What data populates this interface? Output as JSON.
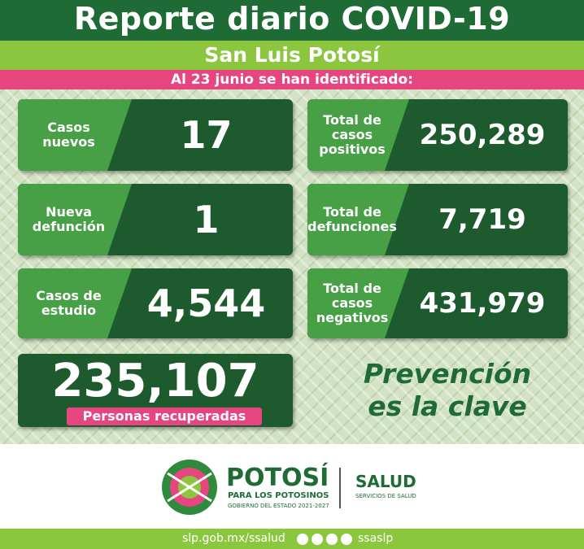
{
  "header": {
    "title": "Reporte diario COVID-19",
    "subtitle": "San Luis Potosí",
    "date_line": "Al 23 junio se han identificado:"
  },
  "cards": [
    {
      "label": [
        "Casos",
        "nuevos"
      ],
      "value": "17"
    },
    {
      "label": [
        "Total de",
        "casos",
        "positivos"
      ],
      "value": "250,289"
    },
    {
      "label": [
        "Nueva",
        "defunción"
      ],
      "value": "1"
    },
    {
      "label": [
        "Total de",
        "defunciones"
      ],
      "value": "7,719"
    },
    {
      "label": [
        "Casos de",
        "estudio"
      ],
      "value": "4,544"
    },
    {
      "label": [
        "Total de",
        "casos",
        "negativos"
      ],
      "value": "431,979"
    }
  ],
  "recovered": {
    "value": "235,107",
    "label": "Personas recuperadas"
  },
  "slogan": [
    "Prevención",
    "es la clave"
  ],
  "logo": {
    "name": "POTOSÍ",
    "tagline": "PARA LOS POTOSINOS",
    "government": "GOBIERNO DEL ESTADO 2021-2027",
    "agency": "SALUD",
    "agency_sub": "SERVICIOS DE SALUD"
  },
  "footer": {
    "url": "slp.gob.mx/ssalud",
    "handle": "ssaslp"
  }
}
